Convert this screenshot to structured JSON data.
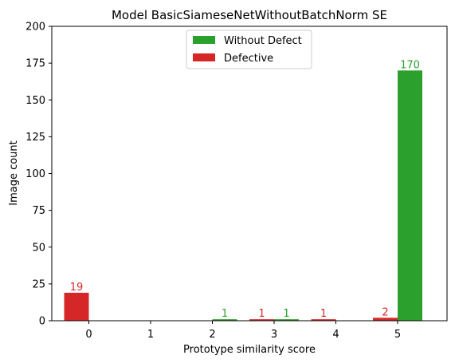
{
  "chart_data": {
    "type": "bar",
    "title": "Model BasicSiameseNetWithoutBatchNorm SE",
    "xlabel": "Prototype similarity score",
    "ylabel": "Image count",
    "categories": [
      0,
      1,
      2,
      3,
      4,
      5
    ],
    "ylim": [
      0,
      200
    ],
    "yticks": [
      0,
      25,
      50,
      75,
      100,
      125,
      150,
      175,
      200
    ],
    "grid": false,
    "legend_position": "top-center",
    "series": [
      {
        "name": "Without Defect",
        "color": "#2ca02c",
        "values": [
          0,
          0,
          1,
          1,
          0,
          170
        ],
        "labels": [
          "",
          "",
          "1",
          "1",
          "",
          "170"
        ]
      },
      {
        "name": "Defective",
        "color": "#d62728",
        "values": [
          19,
          0,
          0,
          1,
          1,
          2
        ],
        "labels": [
          "19",
          "",
          "",
          "1",
          "1",
          "2"
        ]
      }
    ]
  }
}
